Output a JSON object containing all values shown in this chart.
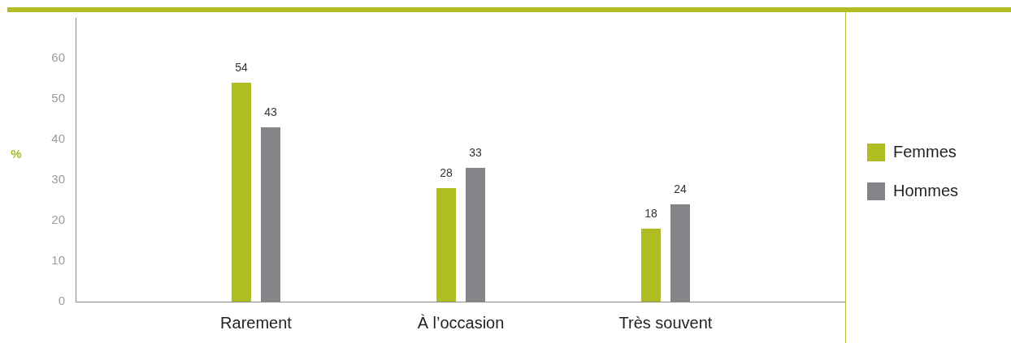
{
  "chart_data": {
    "type": "bar",
    "categories": [
      "Rarement",
      "À l’occasion",
      "Très souvent"
    ],
    "series": [
      {
        "name": "Femmes",
        "color": "#afbd22",
        "values": [
          54,
          28,
          18
        ]
      },
      {
        "name": "Hommes",
        "color": "#848589",
        "values": [
          43,
          33,
          24
        ]
      }
    ],
    "ylabel": "%",
    "ylim": [
      0,
      70
    ],
    "yticks": [
      0,
      10,
      20,
      30,
      40,
      50,
      60
    ],
    "data_labels": true,
    "legend": "right",
    "grid": false
  }
}
